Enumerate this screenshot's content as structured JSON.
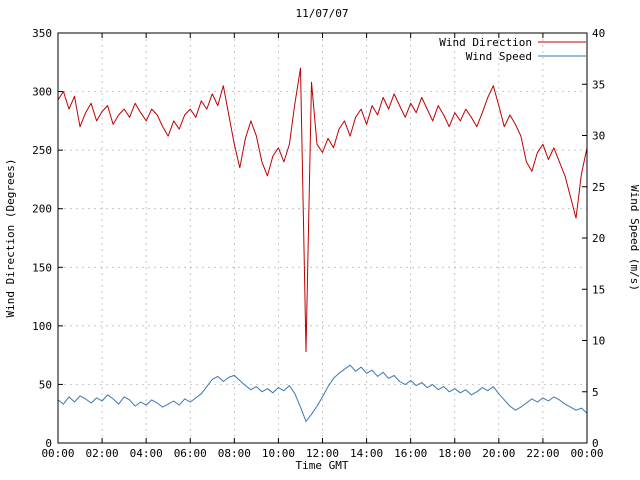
{
  "title": "11/07/07",
  "chart_data": {
    "type": "line",
    "title": "11/07/07",
    "xlabel": "Time GMT",
    "ylabel_left": "Wind Direction (Degrees)",
    "ylabel_right": "Wind Speed (m/s)",
    "grid": true,
    "legend_position": "top-right",
    "x_range_hours": [
      0,
      24
    ],
    "x_tick_step_hours": 2,
    "x_ticks": [
      "00:00",
      "02:00",
      "04:00",
      "06:00",
      "08:00",
      "10:00",
      "12:00",
      "14:00",
      "16:00",
      "18:00",
      "20:00",
      "22:00",
      "00:00"
    ],
    "y_left_range": [
      0,
      350
    ],
    "y_left_ticks": [
      0,
      50,
      100,
      150,
      200,
      250,
      300,
      350
    ],
    "y_right_range": [
      0,
      40
    ],
    "y_right_ticks": [
      0,
      5,
      10,
      15,
      20,
      25,
      30,
      35,
      40
    ],
    "x_start_hours": 0,
    "x_step_hours": 0.25,
    "series": [
      {
        "name": "Wind Direction",
        "axis": "left",
        "color": "#c00000",
        "values": [
          293,
          300,
          285,
          296,
          270,
          282,
          290,
          275,
          283,
          288,
          272,
          280,
          285,
          278,
          290,
          282,
          275,
          285,
          280,
          270,
          262,
          275,
          268,
          280,
          285,
          278,
          292,
          285,
          298,
          288,
          305,
          280,
          255,
          235,
          260,
          275,
          262,
          240,
          228,
          245,
          252,
          240,
          255,
          290,
          320,
          78,
          308,
          255,
          248,
          260,
          252,
          268,
          275,
          262,
          278,
          285,
          272,
          288,
          280,
          295,
          285,
          298,
          288,
          278,
          290,
          282,
          295,
          285,
          275,
          288,
          280,
          270,
          282,
          275,
          285,
          278,
          270,
          282,
          295,
          305,
          288,
          270,
          280,
          272,
          262,
          240,
          232,
          248,
          255,
          242,
          252,
          240,
          228,
          210,
          192,
          230,
          252
        ]
      },
      {
        "name": "Wind Speed",
        "axis": "right",
        "color": "#3878b4",
        "values": [
          4.2,
          3.8,
          4.5,
          4.0,
          4.6,
          4.3,
          3.9,
          4.4,
          4.1,
          4.7,
          4.3,
          3.8,
          4.5,
          4.2,
          3.6,
          4.0,
          3.7,
          4.2,
          3.9,
          3.5,
          3.8,
          4.1,
          3.7,
          4.3,
          4.0,
          4.4,
          4.8,
          5.5,
          6.2,
          6.5,
          6.0,
          6.4,
          6.6,
          6.1,
          5.6,
          5.2,
          5.5,
          5.0,
          5.3,
          4.9,
          5.4,
          5.1,
          5.6,
          4.8,
          3.5,
          2.1,
          2.8,
          3.6,
          4.5,
          5.5,
          6.3,
          6.8,
          7.2,
          7.6,
          7.0,
          7.4,
          6.8,
          7.1,
          6.5,
          6.9,
          6.3,
          6.6,
          6.0,
          5.7,
          6.1,
          5.6,
          5.9,
          5.4,
          5.7,
          5.2,
          5.5,
          5.0,
          5.3,
          4.9,
          5.2,
          4.7,
          5.0,
          5.4,
          5.1,
          5.5,
          4.8,
          4.2,
          3.6,
          3.2,
          3.5,
          3.9,
          4.3,
          4.0,
          4.4,
          4.1,
          4.5,
          4.2,
          3.8,
          3.5,
          3.2,
          3.4,
          2.9
        ]
      }
    ],
    "colors": {
      "grid": "#b0b0b0",
      "border": "#000000",
      "background": "#ffffff"
    }
  }
}
